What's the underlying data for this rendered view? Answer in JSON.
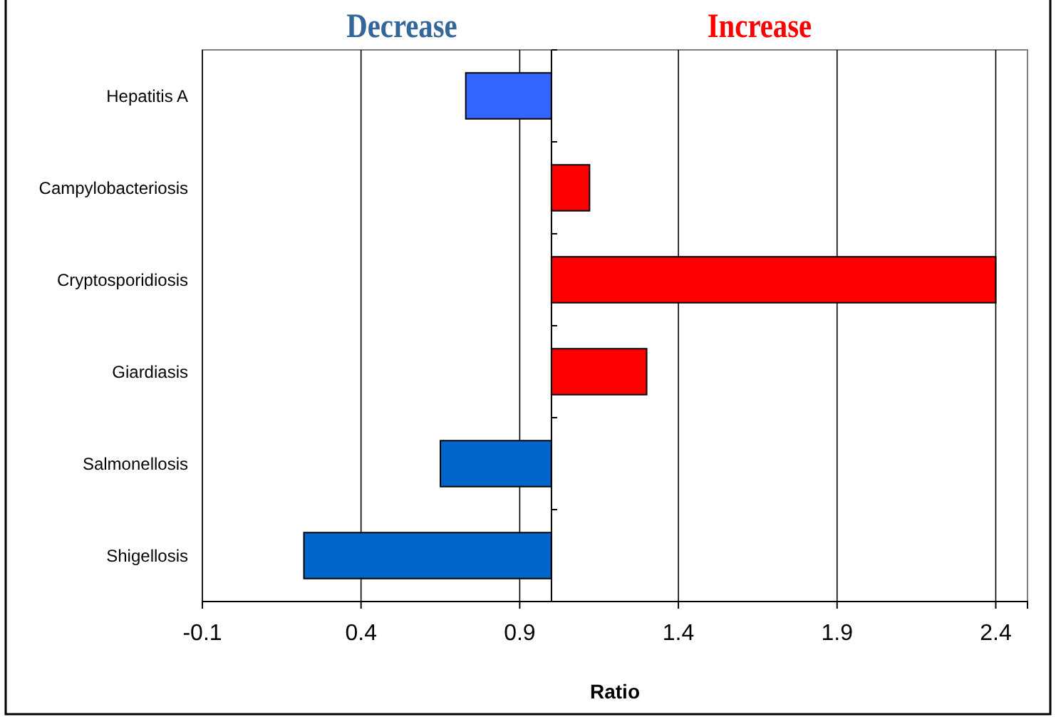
{
  "chart_data": {
    "type": "bar",
    "orientation": "horizontal",
    "categories": [
      "Hepatitis A",
      "Campylobacteriosis",
      "Cryptosporidiosis",
      "Giardiasis",
      "Salmonellosis",
      "Shigellosis"
    ],
    "base": [
      1,
      1,
      1,
      1,
      1,
      1
    ],
    "values": [
      -0.27,
      0.12,
      1.4,
      0.3,
      -0.35,
      -0.78
    ],
    "colors": [
      "#3366ff",
      "#ff0000",
      "#ff0000",
      "#ff0000",
      "#0066cc",
      "#0066cc"
    ],
    "xlim": [
      -0.1,
      2.5
    ],
    "xticks": [
      -0.1,
      0.4,
      0.9,
      1.4,
      1.9,
      2.4
    ],
    "xlabel": "Ratio",
    "grid": "x",
    "ref_lines": [
      {
        "axis": "x",
        "value": 1,
        "color": "#000000"
      }
    ],
    "annotations": [
      "Decrease",
      "Increase"
    ]
  }
}
